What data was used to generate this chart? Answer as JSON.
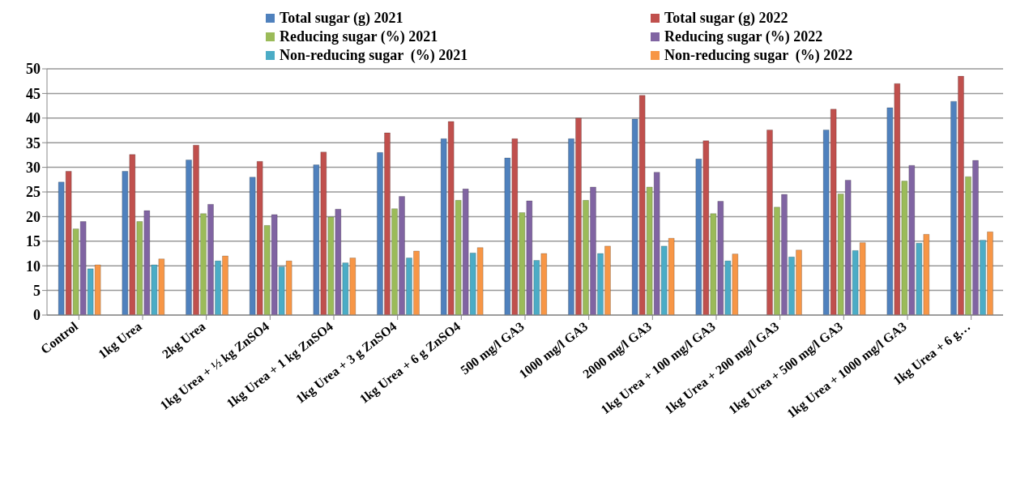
{
  "chart_data": {
    "type": "bar",
    "categories": [
      "Control",
      "1kg Urea",
      "2kg Urea",
      "1kg Urea + ½ kg ZnSO4",
      "1kg Urea + 1 kg ZnSO4",
      "1kg Urea + 3 g ZnSO4",
      "1kg Urea + 6 g ZnSO4",
      "500 mg/l GA3",
      "1000 mg/l GA3",
      "2000 mg/l GA3",
      "1kg Urea + 100 mg/l GA3",
      "1kg Urea + 200 mg/l GA3",
      "1kg Urea + 500 mg/l GA3",
      "1kg Urea + 1000 mg/l GA3",
      "1kg Urea + 6 g…"
    ],
    "series": [
      {
        "name": "Total sugar (g) 2021",
        "color": "#4f81bd",
        "values": [
          27,
          29.2,
          31.5,
          28,
          30.5,
          33,
          35.8,
          31.9,
          35.8,
          39.8,
          31.7,
          0,
          37.6,
          42.1,
          43.4
        ]
      },
      {
        "name": "Total sugar (g) 2022",
        "color": "#c0504d",
        "values": [
          29.2,
          32.6,
          34.5,
          31.2,
          33.1,
          37,
          39.3,
          35.8,
          40,
          44.6,
          35.4,
          37.6,
          41.8,
          47,
          48.5
        ]
      },
      {
        "name": "Reducing sugar (%) 2021",
        "color": "#9bbb59",
        "values": [
          17.5,
          19,
          20.6,
          18.2,
          19.9,
          21.6,
          23.3,
          20.8,
          23.3,
          26,
          20.6,
          21.9,
          24.6,
          27.2,
          28.1
        ]
      },
      {
        "name": "Reducing sugar (%) 2022",
        "color": "#8064a2",
        "values": [
          19,
          21.2,
          22.5,
          20.4,
          21.5,
          24.1,
          25.6,
          23.2,
          26,
          29,
          23.1,
          24.5,
          27.4,
          30.4,
          31.4
        ]
      },
      {
        "name": "Non-reducing sugar  (%) 2021",
        "color": "#4bacc6",
        "values": [
          9.4,
          10.2,
          11,
          9.8,
          10.6,
          11.6,
          12.6,
          11.1,
          12.5,
          14,
          11,
          11.8,
          13.1,
          14.6,
          15.2
        ]
      },
      {
        "name": "Non-reducing sugar  (%) 2022",
        "color": "#f79646",
        "values": [
          10.2,
          11.4,
          12,
          11,
          11.6,
          13,
          13.7,
          12.5,
          14,
          15.6,
          12.4,
          13.2,
          14.7,
          16.4,
          16.9
        ]
      }
    ],
    "ylim": [
      0,
      50
    ],
    "yticks": [
      0,
      5,
      10,
      15,
      20,
      25,
      30,
      35,
      40,
      45,
      50
    ],
    "grid": "y",
    "legend": "top"
  }
}
